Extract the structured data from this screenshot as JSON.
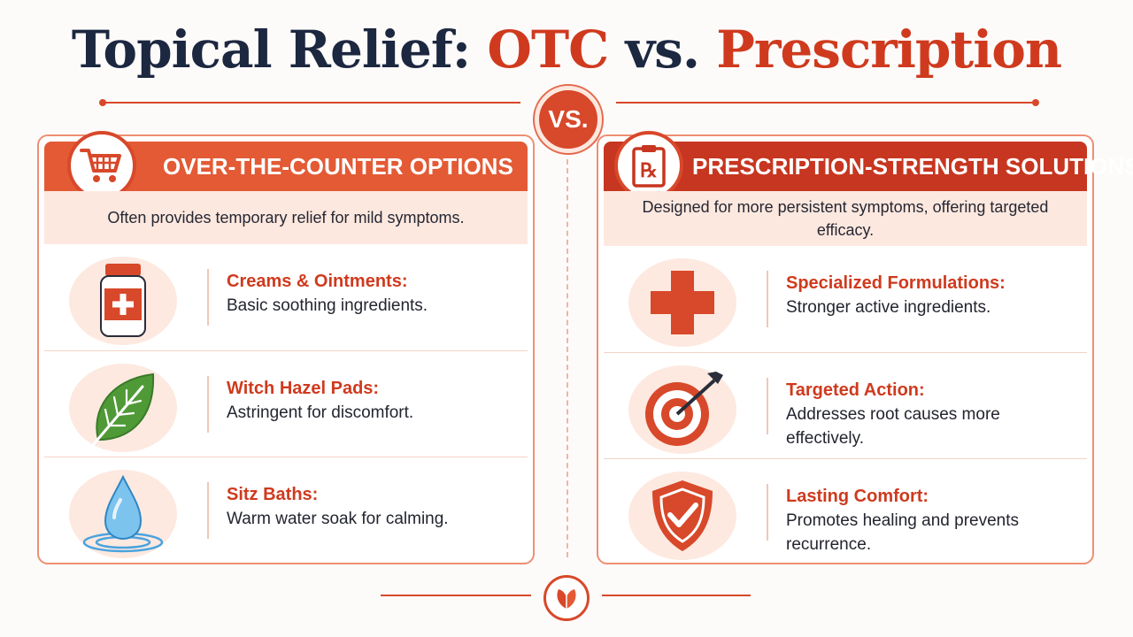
{
  "title": {
    "part1": "Topical Relief: ",
    "part2": "OTC",
    "part3": " vs. ",
    "part4": "Prescription"
  },
  "vs_label": "VS.",
  "otc": {
    "heading": "OVER-THE-COUNTER OPTIONS",
    "intro": "Often provides temporary relief for mild symptoms.",
    "items": [
      {
        "title": "Creams & Ointments:",
        "desc": "Basic soothing ingredients.",
        "icon": "ointment-jar-icon"
      },
      {
        "title": "Witch Hazel Pads:",
        "desc": "Astringent for discomfort.",
        "icon": "leaf-icon"
      },
      {
        "title": "Sitz Baths:",
        "desc": "Warm water soak for calming.",
        "icon": "water-drop-icon"
      }
    ]
  },
  "rx": {
    "heading": "PRESCRIPTION-STRENGTH SOLUTIONS",
    "intro": "Designed for more persistent symptoms, offering targeted efficacy.",
    "items": [
      {
        "title": "Specialized Formulations:",
        "desc": "Stronger active ingredients.",
        "icon": "medical-cross-icon"
      },
      {
        "title": "Targeted Action:",
        "desc": "Addresses root causes more effectively.",
        "icon": "target-icon"
      },
      {
        "title": "Lasting Comfort:",
        "desc": "Promotes healing and prevents recurrence.",
        "icon": "shield-check-icon"
      }
    ]
  },
  "colors": {
    "accent": "#d8482a",
    "dark_accent": "#c73620",
    "navy": "#1c2740",
    "leaf_green": "#4f9a37",
    "water_blue": "#4aa3df"
  }
}
